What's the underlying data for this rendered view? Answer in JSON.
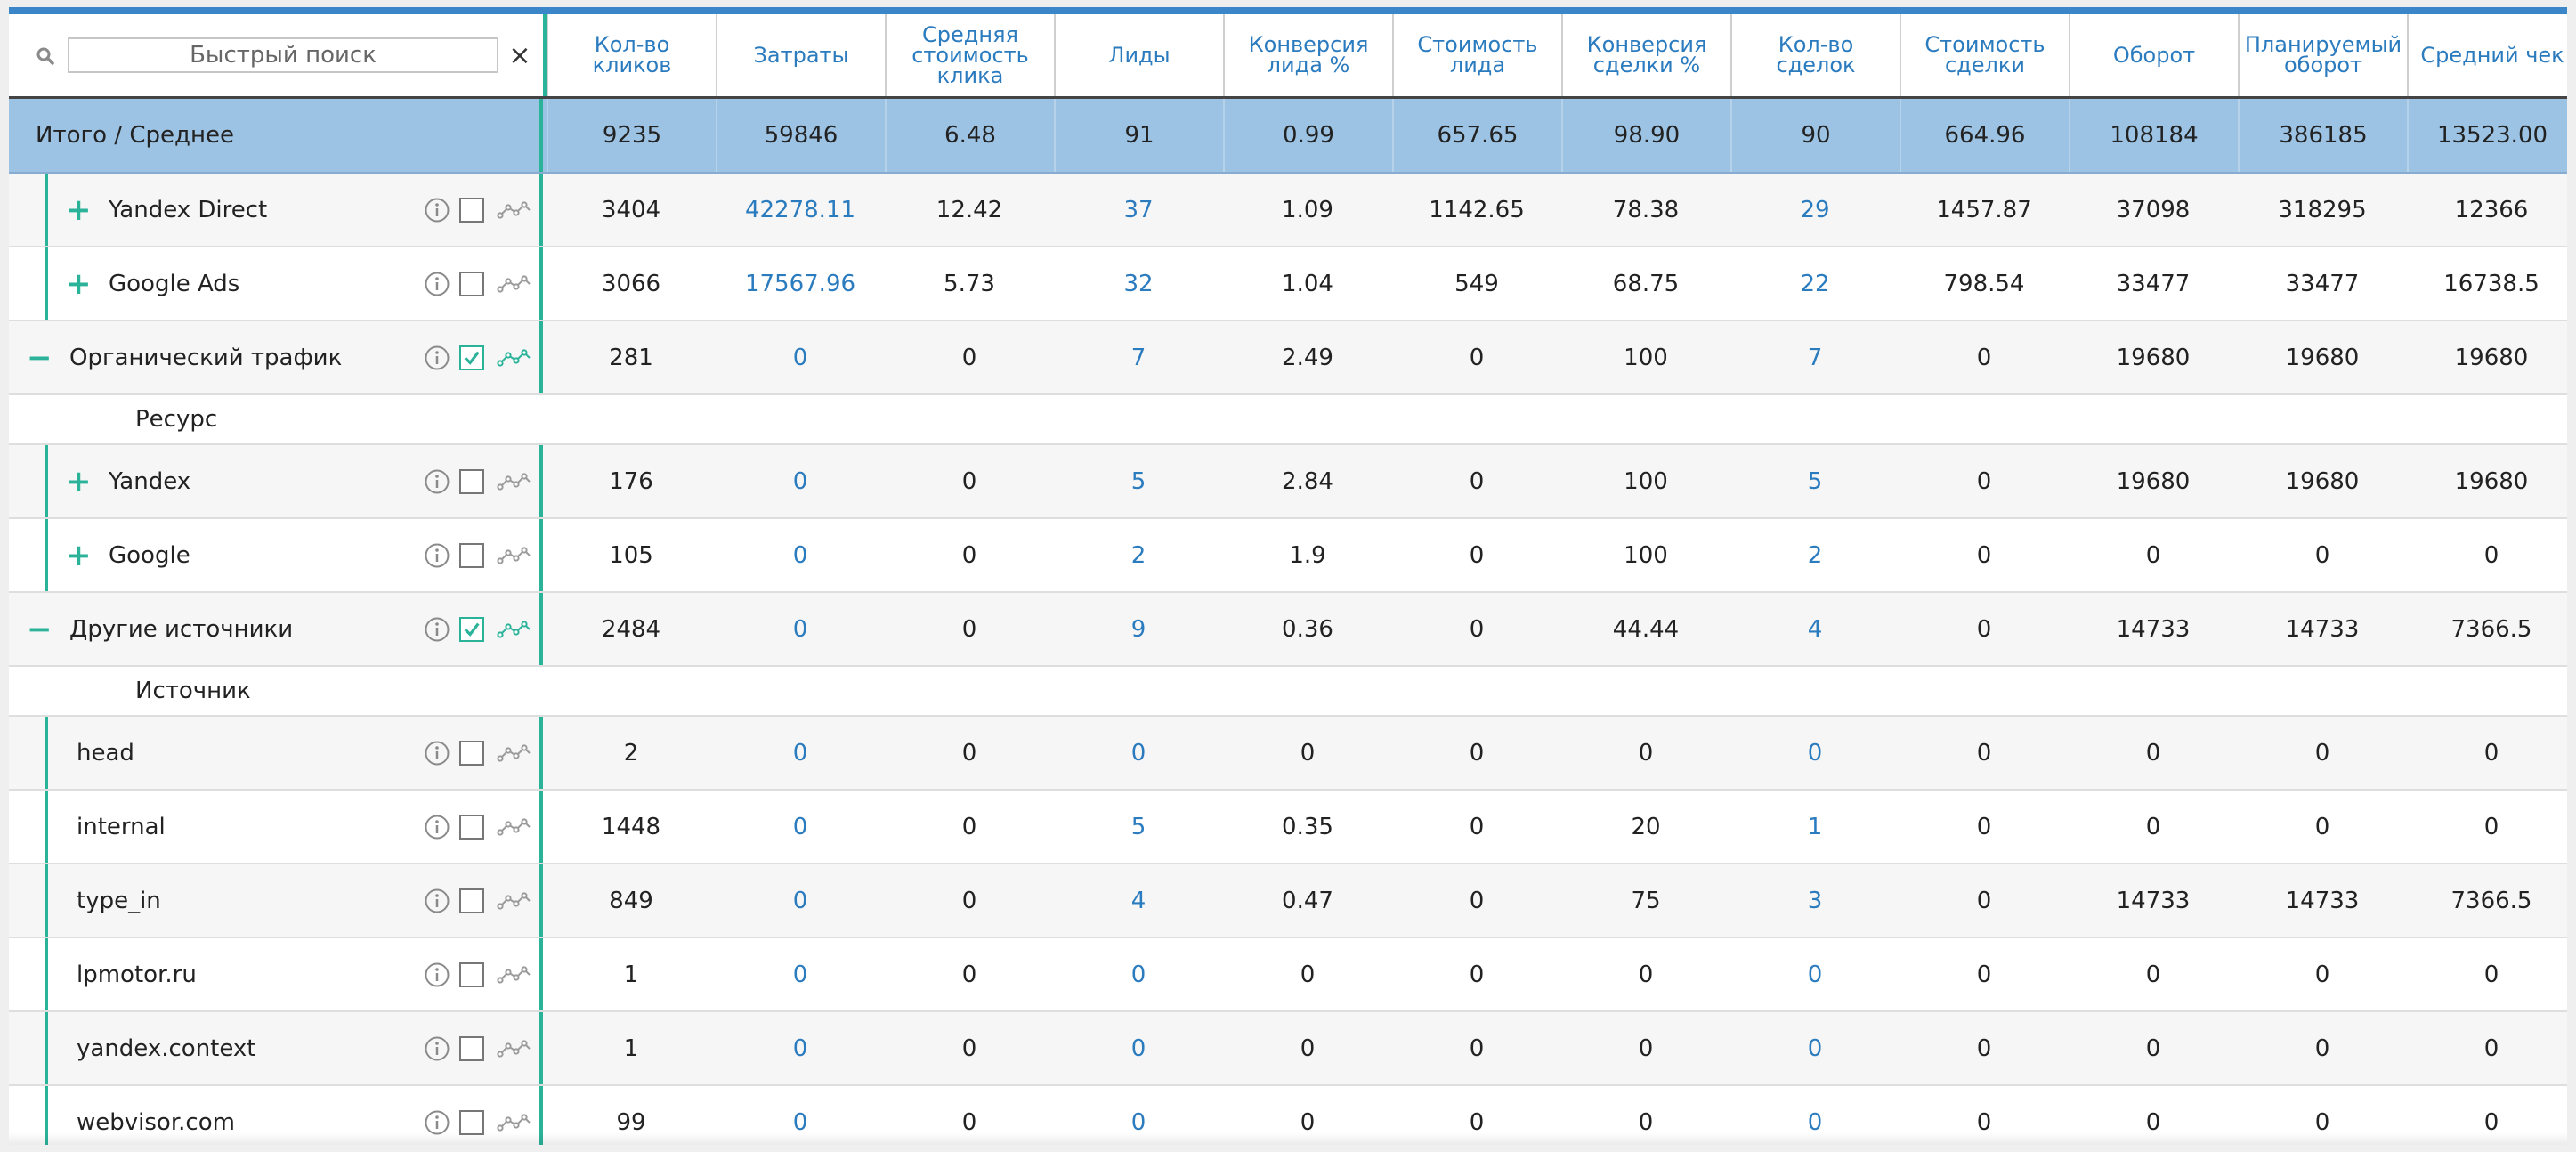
{
  "search": {
    "placeholder": "Быстрый поиск",
    "value": "",
    "clear_label": "×"
  },
  "columns": [
    "Кол-во\nкликов",
    "Затраты",
    "Средняя\nстоимость\nклика",
    "Лиды",
    "Конверсия\nлида %",
    "Стоимость\nлида",
    "Конверсия\nсделки %",
    "Кол-во\nсделок",
    "Стоимость\nсделки",
    "Оборот",
    "Планируемый\nоборот",
    "Средний чек"
  ],
  "totals": {
    "label": "Итого / Среднее",
    "values": [
      "9235",
      "59846",
      "6.48",
      "91",
      "0.99",
      "657.65",
      "98.90",
      "90",
      "664.96",
      "108184",
      "386185",
      "13523.00"
    ]
  },
  "rows": [
    {
      "kind": "row",
      "indent": 1,
      "expander": "+",
      "label": "Yandex Direct",
      "checked": false,
      "values": [
        "3404",
        "42278.11",
        "12.42",
        "37",
        "1.09",
        "1142.65",
        "78.38",
        "29",
        "1457.87",
        "37098",
        "318295",
        "12366"
      ]
    },
    {
      "kind": "row",
      "indent": 1,
      "expander": "+",
      "label": "Google Ads",
      "checked": false,
      "values": [
        "3066",
        "17567.96",
        "5.73",
        "32",
        "1.04",
        "549",
        "68.75",
        "22",
        "798.54",
        "33477",
        "33477",
        "16738.5"
      ]
    },
    {
      "kind": "row",
      "indent": 0,
      "expander": "−",
      "label": "Органический трафик",
      "checked": true,
      "values": [
        "281",
        "0",
        "0",
        "7",
        "2.49",
        "0",
        "100",
        "7",
        "0",
        "19680",
        "19680",
        "19680"
      ]
    },
    {
      "kind": "group",
      "label": "Ресурс"
    },
    {
      "kind": "row",
      "indent": 1,
      "expander": "+",
      "label": "Yandex",
      "checked": false,
      "values": [
        "176",
        "0",
        "0",
        "5",
        "2.84",
        "0",
        "100",
        "5",
        "0",
        "19680",
        "19680",
        "19680"
      ]
    },
    {
      "kind": "row",
      "indent": 1,
      "expander": "+",
      "label": "Google",
      "checked": false,
      "values": [
        "105",
        "0",
        "0",
        "2",
        "1.9",
        "0",
        "100",
        "2",
        "0",
        "0",
        "0",
        "0"
      ]
    },
    {
      "kind": "row",
      "indent": 0,
      "expander": "−",
      "label": "Другие источники",
      "checked": true,
      "values": [
        "2484",
        "0",
        "0",
        "9",
        "0.36",
        "0",
        "44.44",
        "4",
        "0",
        "14733",
        "14733",
        "7366.5"
      ]
    },
    {
      "kind": "group",
      "label": "Источник"
    },
    {
      "kind": "row",
      "indent": 1,
      "expander": "",
      "label": "head",
      "checked": false,
      "values": [
        "2",
        "0",
        "0",
        "0",
        "0",
        "0",
        "0",
        "0",
        "0",
        "0",
        "0",
        "0"
      ]
    },
    {
      "kind": "row",
      "indent": 1,
      "expander": "",
      "label": "internal",
      "checked": false,
      "values": [
        "1448",
        "0",
        "0",
        "5",
        "0.35",
        "0",
        "20",
        "1",
        "0",
        "0",
        "0",
        "0"
      ]
    },
    {
      "kind": "row",
      "indent": 1,
      "expander": "",
      "label": "type_in",
      "checked": false,
      "values": [
        "849",
        "0",
        "0",
        "4",
        "0.47",
        "0",
        "75",
        "3",
        "0",
        "14733",
        "14733",
        "7366.5"
      ]
    },
    {
      "kind": "row",
      "indent": 1,
      "expander": "",
      "label": "lpmotor.ru",
      "checked": false,
      "values": [
        "1",
        "0",
        "0",
        "0",
        "0",
        "0",
        "0",
        "0",
        "0",
        "0",
        "0",
        "0"
      ]
    },
    {
      "kind": "row",
      "indent": 1,
      "expander": "",
      "label": "yandex.context",
      "checked": false,
      "values": [
        "1",
        "0",
        "0",
        "0",
        "0",
        "0",
        "0",
        "0",
        "0",
        "0",
        "0",
        "0"
      ]
    },
    {
      "kind": "row",
      "indent": 1,
      "expander": "",
      "label": "webvisor.com",
      "checked": false,
      "values": [
        "99",
        "0",
        "0",
        "0",
        "0",
        "0",
        "0",
        "0",
        "0",
        "0",
        "0",
        "0"
      ]
    }
  ],
  "colors": {
    "accent_teal": "#2bb39a",
    "link_blue": "#2b7bbf",
    "totals_bg": "#9cc3e3",
    "top_bar": "#3a86c8"
  },
  "icons": {
    "search": "search-icon",
    "info": "info-icon",
    "checkbox": "checkbox",
    "chart": "line-chart-icon",
    "clear": "close-icon"
  }
}
